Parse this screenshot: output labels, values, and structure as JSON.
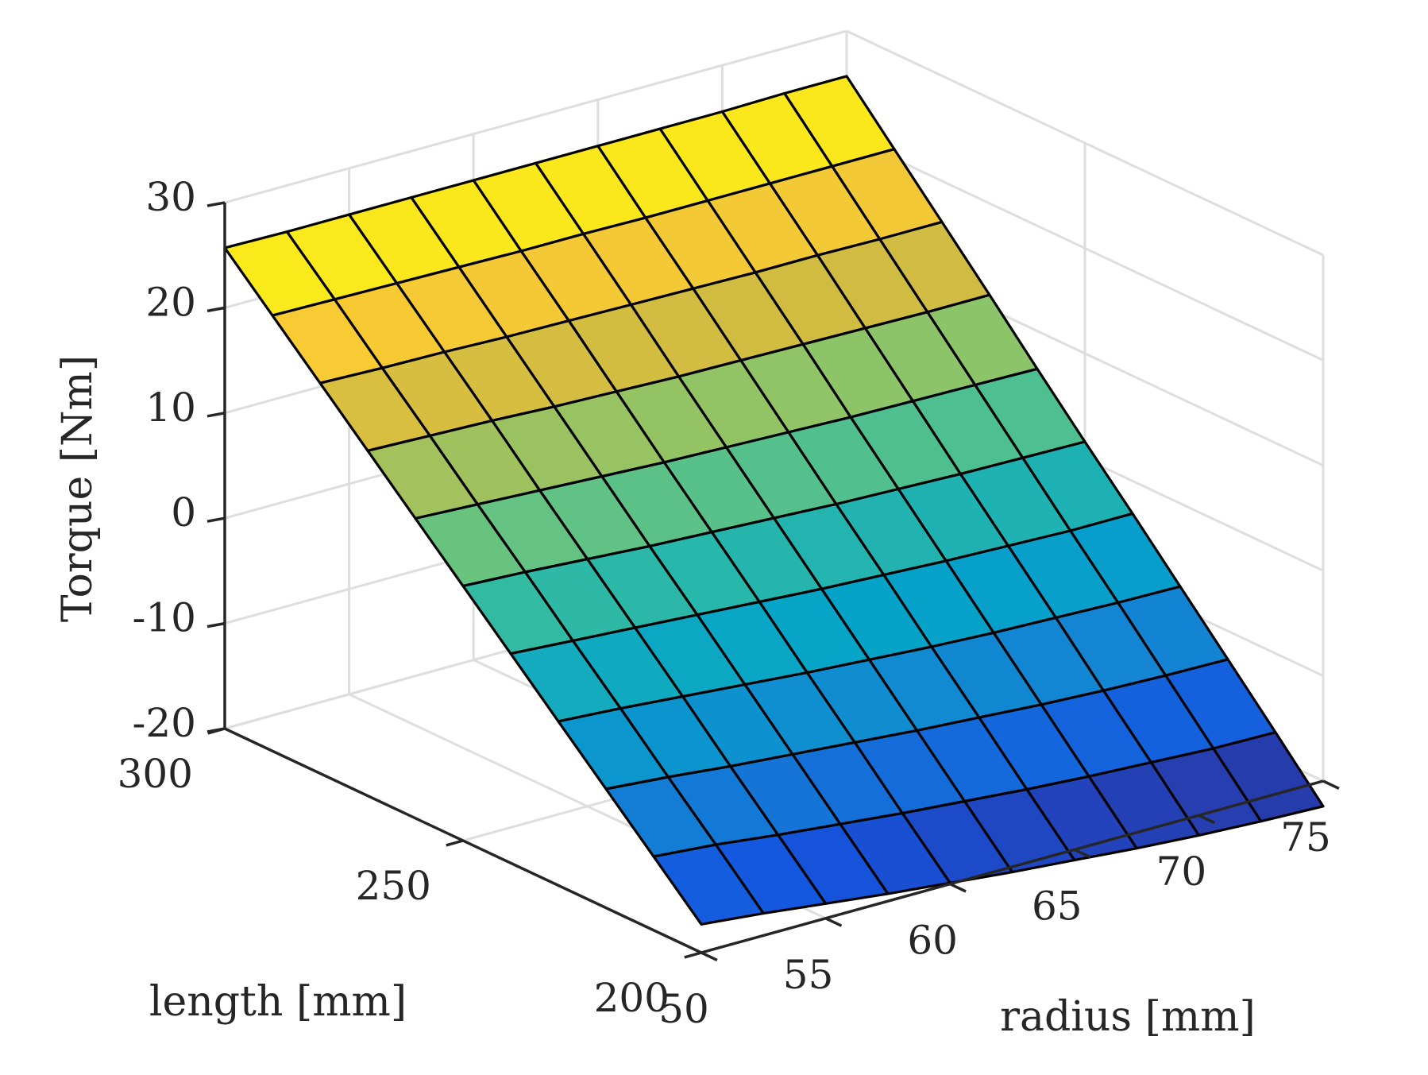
{
  "chart_data": {
    "type": "surface",
    "title": "",
    "xlabel": "radius [mm]",
    "ylabel": "length [mm]",
    "zlabel": "Torque [Nm]",
    "x_range": [
      50,
      75
    ],
    "y_range": [
      200,
      300
    ],
    "z_range": [
      -20,
      30
    ],
    "x_ticks": [
      50,
      55,
      60,
      65,
      70,
      75
    ],
    "y_ticks": [
      200,
      250,
      300
    ],
    "z_ticks": [
      -20,
      -10,
      0,
      10,
      20,
      30
    ],
    "x_tick_labels": [
      "50",
      "55",
      "60",
      "65",
      "70",
      "75"
    ],
    "y_tick_labels": [
      "200",
      "250",
      "300"
    ],
    "z_tick_labels": [
      "-20",
      "-10",
      "0",
      "10",
      "20",
      "30"
    ],
    "grid": true,
    "colormap": "parula",
    "radius": [
      50,
      52.5,
      55,
      57.5,
      60,
      62.5,
      65,
      67.5,
      70,
      72.5,
      75
    ],
    "length": [
      200,
      210,
      220,
      230,
      240,
      250,
      260,
      270,
      280,
      290,
      300
    ],
    "torque": [
      [
        -17.3,
        -17.9,
        -18.6,
        -19.3,
        -19.9,
        -20.5,
        -21.0,
        -21.5,
        -21.9,
        -22.2,
        -22.4
      ],
      [
        -13.0,
        -13.5,
        -14.2,
        -14.8,
        -15.4,
        -15.9,
        -16.4,
        -16.8,
        -17.1,
        -17.4,
        -17.5
      ],
      [
        -8.7,
        -9.2,
        -9.8,
        -10.3,
        -10.8,
        -11.3,
        -11.7,
        -12.1,
        -12.4,
        -12.6,
        -12.7
      ],
      [
        -4.4,
        -4.8,
        -5.3,
        -5.8,
        -6.3,
        -6.7,
        -7.1,
        -7.4,
        -7.6,
        -7.8,
        -7.9
      ],
      [
        -0.1,
        -0.5,
        -0.9,
        -1.3,
        -1.7,
        -2.1,
        -2.4,
        -2.7,
        -2.9,
        -3.1,
        -3.1
      ],
      [
        4.2,
        3.9,
        3.5,
        3.1,
        2.8,
        2.5,
        2.2,
        2.0,
        1.8,
        1.7,
        1.6
      ],
      [
        8.5,
        8.2,
        7.9,
        7.6,
        7.3,
        7.1,
        6.9,
        6.7,
        6.6,
        6.5,
        6.4
      ],
      [
        12.8,
        12.6,
        12.4,
        12.1,
        11.9,
        11.7,
        11.6,
        11.5,
        11.4,
        11.3,
        11.3
      ],
      [
        17.1,
        16.9,
        16.8,
        16.6,
        16.5,
        16.4,
        16.3,
        16.2,
        16.2,
        16.1,
        16.1
      ],
      [
        21.4,
        21.3,
        21.2,
        21.1,
        21.0,
        21.0,
        20.9,
        20.9,
        20.9,
        20.9,
        20.9
      ],
      [
        25.7,
        25.6,
        25.6,
        25.6,
        25.6,
        25.6,
        25.6,
        25.6,
        25.6,
        25.7,
        25.7
      ]
    ],
    "colors": {
      "text": "#262626",
      "axis": "#262626",
      "grid": "#dedede",
      "edge": "#000000",
      "background": "#ffffff"
    }
  }
}
